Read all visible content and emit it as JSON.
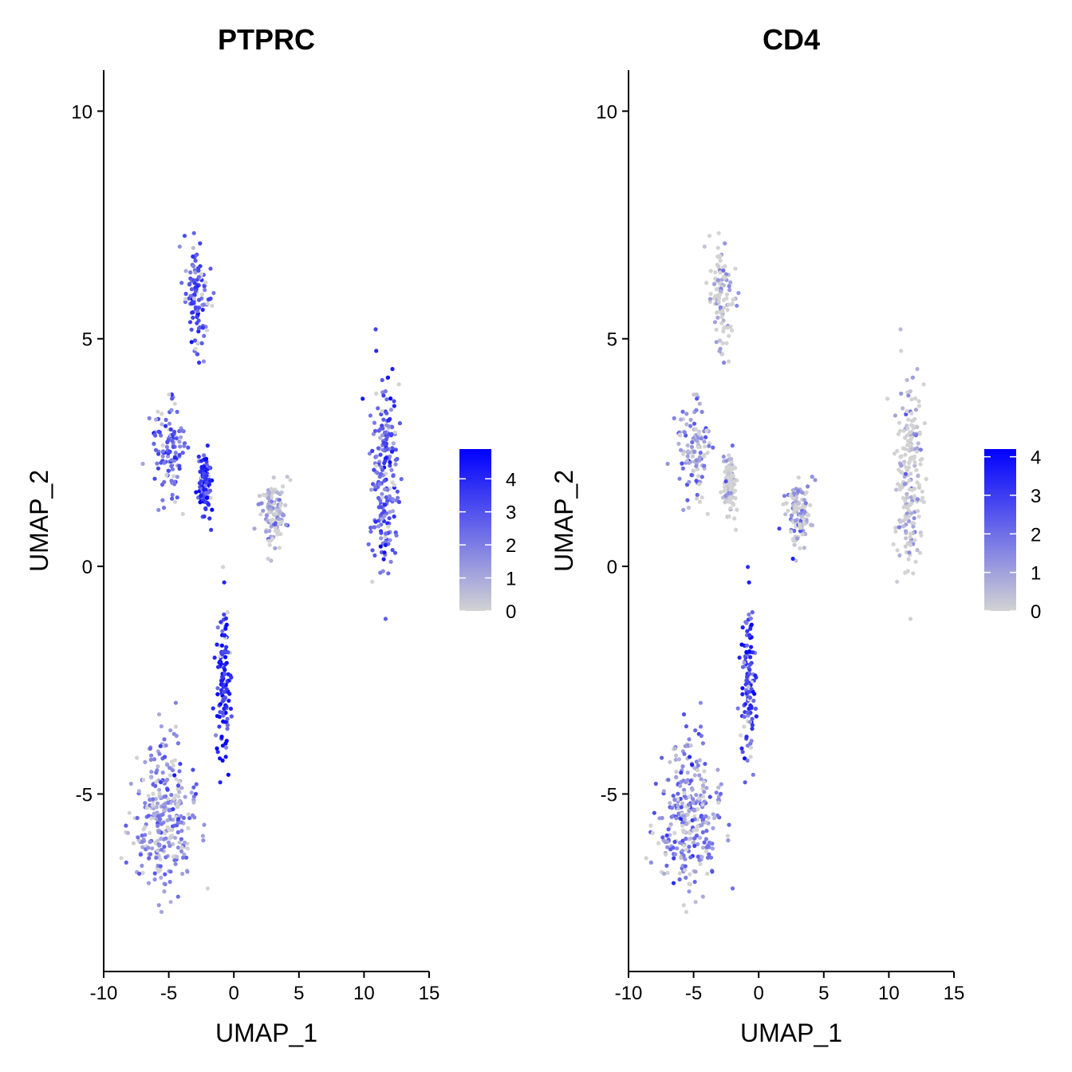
{
  "chart_data": [
    {
      "type": "scatter",
      "title": "PTPRC",
      "xlabel": "UMAP_1",
      "ylabel": "UMAP_2",
      "xlim": [
        -10,
        15
      ],
      "ylim": [
        -8.9,
        10.9
      ],
      "xticks": [
        "-10",
        "-5",
        "0",
        "5",
        "10",
        "15"
      ],
      "yticks": [
        "-5",
        "0",
        "5",
        "10"
      ],
      "grid": false,
      "legend": {
        "position": "right",
        "colors": [
          "#d3d3d3",
          "#0000ff"
        ],
        "min": 0,
        "max": 4.9,
        "ticks": [
          "0",
          "1",
          "2",
          "3",
          "4"
        ]
      },
      "clusters": [
        {
          "name": "cluster-bottom-left",
          "center": [
            -5.5,
            -5.5
          ],
          "spread": [
            2.2,
            1.5
          ],
          "level": 1.6
        },
        {
          "name": "cluster-center-lower",
          "center": [
            -0.8,
            -2.6
          ],
          "spread": [
            0.5,
            1.6
          ],
          "level": 3.8
        },
        {
          "name": "cluster-top-left",
          "center": [
            -2.8,
            5.8
          ],
          "spread": [
            0.8,
            1.3
          ],
          "level": 2.7
        },
        {
          "name": "cluster-mid-left",
          "center": [
            -5.0,
            2.5
          ],
          "spread": [
            1.2,
            1.0
          ],
          "level": 2.5
        },
        {
          "name": "cluster-mid-center",
          "center": [
            -2.2,
            1.8
          ],
          "spread": [
            0.4,
            0.6
          ],
          "level": 3.7
        },
        {
          "name": "cluster-small-center",
          "center": [
            3.0,
            1.2
          ],
          "spread": [
            0.9,
            0.7
          ],
          "level": 0.8
        },
        {
          "name": "cluster-right",
          "center": [
            11.5,
            2.0
          ],
          "spread": [
            1.0,
            2.2
          ],
          "level": 2.8
        }
      ]
    },
    {
      "type": "scatter",
      "title": "CD4",
      "xlabel": "UMAP_1",
      "ylabel": "UMAP_2",
      "xlim": [
        -10,
        15
      ],
      "ylim": [
        -8.9,
        10.9
      ],
      "xticks": [
        "-10",
        "-5",
        "0",
        "5",
        "10",
        "15"
      ],
      "yticks": [
        "-5",
        "0",
        "5",
        "10"
      ],
      "grid": false,
      "legend": {
        "position": "right",
        "colors": [
          "#d3d3d3",
          "#0000ff"
        ],
        "min": 0,
        "max": 4.2,
        "ticks": [
          "0",
          "1",
          "2",
          "3",
          "4"
        ]
      },
      "clusters": [
        {
          "name": "cluster-bottom-left",
          "center": [
            -5.5,
            -5.5
          ],
          "spread": [
            2.2,
            1.5
          ],
          "level": 1.5
        },
        {
          "name": "cluster-center-lower",
          "center": [
            -0.8,
            -2.6
          ],
          "spread": [
            0.5,
            1.6
          ],
          "level": 2.8
        },
        {
          "name": "cluster-top-left",
          "center": [
            -2.8,
            5.8
          ],
          "spread": [
            0.8,
            1.3
          ],
          "level": 0.1
        },
        {
          "name": "cluster-mid-left",
          "center": [
            -5.0,
            2.5
          ],
          "spread": [
            1.2,
            1.0
          ],
          "level": 1.2
        },
        {
          "name": "cluster-mid-center",
          "center": [
            -2.2,
            1.8
          ],
          "spread": [
            0.4,
            0.6
          ],
          "level": 0.2
        },
        {
          "name": "cluster-small-center",
          "center": [
            3.0,
            1.2
          ],
          "spread": [
            0.9,
            0.7
          ],
          "level": 0.6
        },
        {
          "name": "cluster-right",
          "center": [
            11.5,
            2.0
          ],
          "spread": [
            1.0,
            2.2
          ],
          "level": 0.1
        }
      ]
    }
  ]
}
